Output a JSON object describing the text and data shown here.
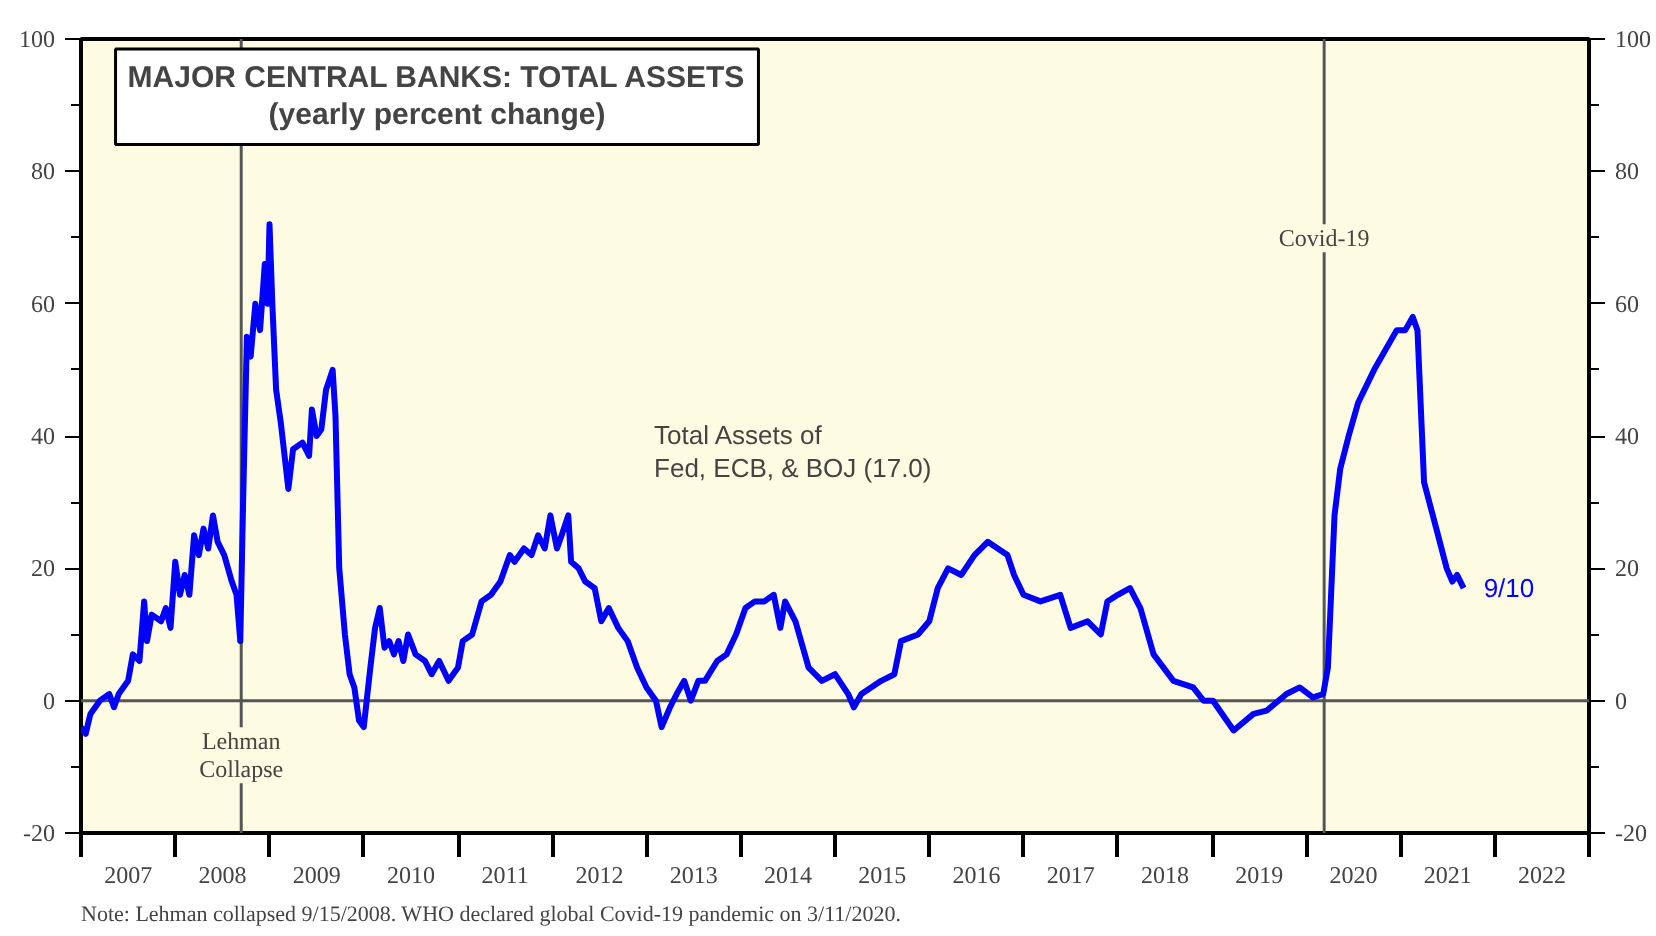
{
  "chart_data": {
    "type": "line",
    "title": "MAJOR CENTRAL BANKS: TOTAL ASSETS",
    "subtitle": "(yearly percent change)",
    "series": [
      {
        "color": "#0000ff",
        "x": [
          2007.0,
          2007.05,
          2007.1,
          2007.2,
          2007.3,
          2007.35,
          2007.4,
          2007.5,
          2007.55,
          2007.62,
          2007.67,
          2007.7,
          2007.75,
          2007.85,
          2007.9,
          2007.95,
          2008.0,
          2008.05,
          2008.1,
          2008.15,
          2008.2,
          2008.25,
          2008.3,
          2008.35,
          2008.4,
          2008.45,
          2008.52,
          2008.6,
          2008.65,
          2008.69,
          2008.72,
          2008.76,
          2008.8,
          2008.85,
          2008.9,
          2008.95,
          2008.98,
          2009.0,
          2009.03,
          2009.07,
          2009.12,
          2009.2,
          2009.25,
          2009.35,
          2009.42,
          2009.45,
          2009.5,
          2009.55,
          2009.6,
          2009.67,
          2009.7,
          2009.74,
          2009.8,
          2009.85,
          2009.9,
          2009.95,
          2010.0,
          2010.07,
          2010.12,
          2010.17,
          2010.22,
          2010.27,
          2010.32,
          2010.37,
          2010.42,
          2010.47,
          2010.55,
          2010.65,
          2010.72,
          2010.8,
          2010.9,
          2011.0,
          2011.05,
          2011.15,
          2011.25,
          2011.35,
          2011.45,
          2011.55,
          2011.6,
          2011.7,
          2011.78,
          2011.85,
          2011.92,
          2011.98,
          2012.05,
          2012.1,
          2012.17,
          2012.2,
          2012.28,
          2012.35,
          2012.45,
          2012.52,
          2012.6,
          2012.7,
          2012.8,
          2012.9,
          2013.0,
          2013.1,
          2013.16,
          2013.25,
          2013.32,
          2013.4,
          2013.47,
          2013.55,
          2013.62,
          2013.75,
          2013.85,
          2013.95,
          2014.05,
          2014.15,
          2014.25,
          2014.35,
          2014.42,
          2014.47,
          2014.58,
          2014.72,
          2014.86,
          2015.0,
          2015.14,
          2015.2,
          2015.28,
          2015.49,
          2015.63,
          2015.7,
          2015.88,
          2016.0,
          2016.09,
          2016.2,
          2016.34,
          2016.48,
          2016.62,
          2016.83,
          2016.9,
          2017.0,
          2017.18,
          2017.39,
          2017.5,
          2017.68,
          2017.82,
          2017.89,
          2018.0,
          2018.13,
          2018.24,
          2018.38,
          2018.59,
          2018.8,
          2018.91,
          2019.01,
          2019.23,
          2019.44,
          2019.58,
          2019.79,
          2019.93,
          2020.07,
          2020.18,
          2020.23,
          2020.3,
          2020.36,
          2020.45,
          2020.55,
          2020.72,
          2020.96,
          2021.05,
          2021.13,
          2021.18,
          2021.25,
          2021.38,
          2021.49,
          2021.55,
          2021.6,
          2021.67
        ],
        "values": [
          -4,
          -5,
          -2,
          0,
          1,
          -1,
          1,
          3,
          7,
          6,
          15,
          9,
          13,
          12,
          14,
          11,
          21,
          16,
          19,
          16,
          25,
          22,
          26,
          23,
          28,
          24,
          22,
          18,
          16,
          9,
          30,
          55,
          52,
          60,
          56,
          66,
          60,
          72,
          60,
          47,
          42,
          32,
          38,
          39,
          37,
          44,
          40,
          41,
          47,
          50,
          43,
          20,
          10,
          4,
          2,
          -3,
          -4,
          5,
          11,
          14,
          8,
          9,
          7,
          9,
          6,
          10,
          7,
          6,
          4,
          6,
          3,
          5,
          9,
          10,
          15,
          16,
          18,
          22,
          21,
          23,
          22,
          25,
          23,
          28,
          23,
          25,
          28,
          21,
          20,
          18,
          17,
          12,
          14,
          11,
          9,
          5,
          2,
          0,
          -4,
          -1,
          1,
          3,
          0,
          3,
          3,
          6,
          7,
          10,
          14,
          15,
          15,
          16,
          11,
          15,
          12,
          5,
          3,
          4,
          1,
          -1,
          1,
          3,
          4,
          9,
          10,
          12,
          17,
          20,
          19,
          22,
          24,
          22,
          19,
          16,
          15,
          16,
          11,
          12,
          10,
          15,
          16,
          17,
          14,
          7,
          3,
          2,
          0,
          0,
          -4.5,
          -2,
          -1.5,
          1,
          2,
          0.5,
          1,
          5,
          28,
          35,
          40,
          45,
          50,
          56,
          56,
          58,
          56,
          33,
          26,
          20,
          18,
          19,
          17
        ]
      }
    ],
    "xlim": [
      2007,
      2023
    ],
    "xticks": [
      {
        "value": 2007,
        "label": null
      },
      {
        "value": 2007.5,
        "label": "2007"
      },
      {
        "value": 2008,
        "label": null
      },
      {
        "value": 2008.5,
        "label": "2008"
      },
      {
        "value": 2009,
        "label": null
      },
      {
        "value": 2009.5,
        "label": "2009"
      },
      {
        "value": 2010,
        "label": null
      },
      {
        "value": 2010.5,
        "label": "2010"
      },
      {
        "value": 2011,
        "label": null
      },
      {
        "value": 2011.5,
        "label": "2011"
      },
      {
        "value": 2012,
        "label": null
      },
      {
        "value": 2012.5,
        "label": "2012"
      },
      {
        "value": 2013,
        "label": null
      },
      {
        "value": 2013.5,
        "label": "2013"
      },
      {
        "value": 2014,
        "label": null
      },
      {
        "value": 2014.5,
        "label": "2014"
      },
      {
        "value": 2015,
        "label": null
      },
      {
        "value": 2015.5,
        "label": "2015"
      },
      {
        "value": 2016,
        "label": null
      },
      {
        "value": 2016.5,
        "label": "2016"
      },
      {
        "value": 2017,
        "label": null
      },
      {
        "value": 2017.5,
        "label": "2017"
      },
      {
        "value": 2018,
        "label": null
      },
      {
        "value": 2018.5,
        "label": "2018"
      },
      {
        "value": 2019,
        "label": null
      },
      {
        "value": 2019.5,
        "label": "2019"
      },
      {
        "value": 2020,
        "label": null
      },
      {
        "value": 2020.5,
        "label": "2020"
      },
      {
        "value": 2021,
        "label": null
      },
      {
        "value": 2021.5,
        "label": "2021"
      },
      {
        "value": 2022,
        "label": null
      },
      {
        "value": 2022.5,
        "label": "2022"
      },
      {
        "value": 2023,
        "label": null
      }
    ],
    "ylim": [
      -20,
      100
    ],
    "yticks": [
      -20,
      {
        "value": -10,
        "label": null
      },
      0,
      {
        "value": 10,
        "label": null
      },
      20,
      {
        "value": 30,
        "label": null
      },
      40,
      {
        "value": 50,
        "label": null
      },
      60,
      {
        "value": 70,
        "label": null
      },
      80,
      {
        "value": 90,
        "label": null
      },
      100
    ],
    "y2lim": [
      -20,
      100
    ],
    "y2ticks": [
      -20,
      {
        "value": -10,
        "label": null
      },
      0,
      {
        "value": 10,
        "label": null
      },
      20,
      {
        "value": 30,
        "label": null
      },
      40,
      {
        "value": 50,
        "label": null
      },
      60,
      {
        "value": 70,
        "label": null
      },
      80,
      {
        "value": 90,
        "label": null
      },
      100
    ],
    "ref_lines": [
      {
        "axis": "y",
        "value": 0,
        "color": "#555555"
      },
      {
        "axis": "x",
        "value": 2008.7,
        "label": "Lehman\nCollapse",
        "color": "#555555"
      },
      {
        "axis": "x",
        "value": 2020.19,
        "label": "Covid-19",
        "color": "#555555"
      }
    ],
    "annotations": [
      "Total Assets of\nFed, ECB, & BOJ (17.0)",
      {
        "text": "9/10",
        "x": 2021.67,
        "y": 17
      },
      "Note: Lehman collapsed 9/15/2008. WHO declared global Covid-19 pandemic on 3/11/2020."
    ],
    "grid": false,
    "line_style": "solid"
  }
}
